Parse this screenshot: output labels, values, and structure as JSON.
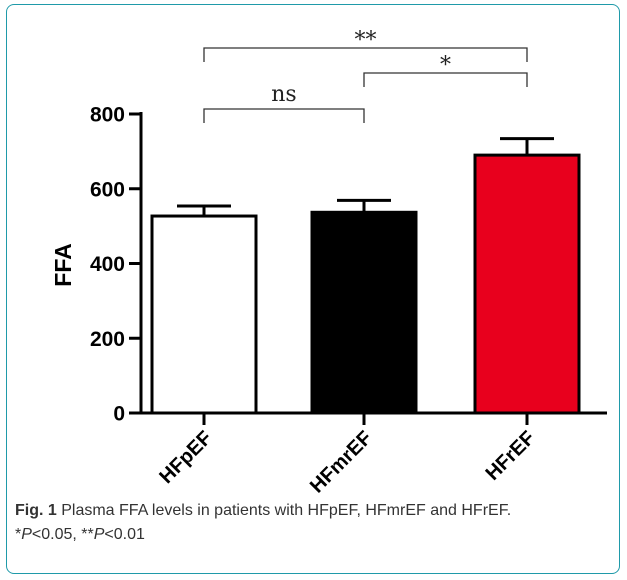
{
  "chart_data": {
    "type": "bar",
    "categories": [
      "HFpEF",
      "HFmrEF",
      "HFrEF"
    ],
    "values": [
      527,
      537,
      690
    ],
    "error": [
      27,
      32,
      44
    ],
    "colors": [
      "#ffffff",
      "#000000",
      "#e8001d"
    ],
    "ylabel": "FFA",
    "ylim": [
      0,
      800
    ],
    "yticks": [
      "0",
      "200",
      "400",
      "600",
      "800"
    ],
    "grid": false,
    "significance": [
      {
        "from": 0,
        "to": 1,
        "label": "ns"
      },
      {
        "from": 1,
        "to": 2,
        "label": "*"
      },
      {
        "from": 0,
        "to": 2,
        "label": "**"
      }
    ]
  },
  "caption": {
    "fig_label": "Fig. 1",
    "text": " Plasma FFA levels in patients with HFpEF, HFmrEF and HFrEF.",
    "p1_star": "*",
    "p1_var": "P",
    "p1_val": "<0.05, ",
    "p2_star": "**",
    "p2_var": "P",
    "p2_val": "<0.01"
  }
}
